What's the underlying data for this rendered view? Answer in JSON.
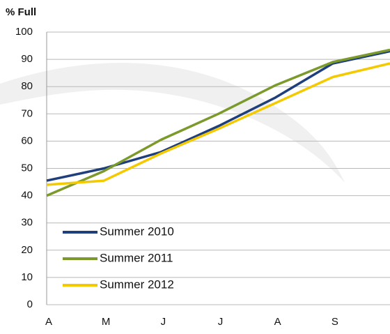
{
  "chart_data": {
    "type": "line",
    "y_label": "% Full",
    "categories": [
      "A",
      "M",
      "J",
      "J",
      "A",
      "S",
      null
    ],
    "series": [
      {
        "name": "Summer 2010",
        "color": "#1f3f7c",
        "values": [
          45.5,
          50,
          56,
          65.5,
          76,
          88.5,
          93
        ]
      },
      {
        "name": "Summer 2011",
        "color": "#7b9a2b",
        "values": [
          40,
          49,
          60.5,
          70,
          80.5,
          89,
          93.5
        ]
      },
      {
        "name": "Summer 2012",
        "color": "#f4c900",
        "values": [
          44,
          45.5,
          55.5,
          64.5,
          74,
          83.5,
          88.5
        ]
      }
    ],
    "ylim": [
      0,
      100
    ],
    "yticks": [
      0,
      10,
      20,
      30,
      40,
      50,
      60,
      70,
      80,
      90,
      100
    ],
    "grid": true,
    "legend": "lower left"
  }
}
